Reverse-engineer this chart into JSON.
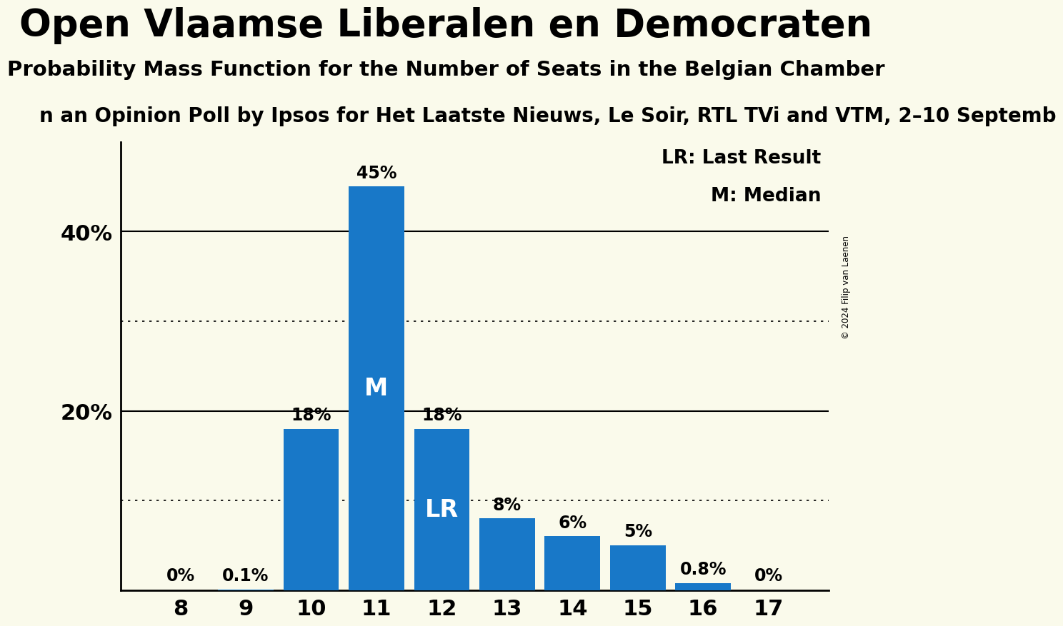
{
  "title": "Open Vlaamse Liberalen en Democraten",
  "subtitle": "Probability Mass Function for the Number of Seats in the Belgian Chamber",
  "subtitle2": "n an Opinion Poll by Ipsos for Het Laatste Nieuws, Le Soir, RTL TVi and VTM, 2–10 Septemb",
  "copyright": "© 2024 Filip van Laenen",
  "categories": [
    8,
    9,
    10,
    11,
    12,
    13,
    14,
    15,
    16,
    17
  ],
  "values": [
    0.0,
    0.1,
    18.0,
    45.0,
    18.0,
    8.0,
    6.0,
    5.0,
    0.8,
    0.0
  ],
  "bar_color": "#1878c8",
  "bar_labels": [
    "0%",
    "0.1%",
    "18%",
    "45%",
    "18%",
    "8%",
    "6%",
    "5%",
    "0.8%",
    "0%"
  ],
  "median_bar": 11,
  "lr_bar": 12,
  "background_color": "#fafaeb",
  "ylim": [
    0,
    50
  ],
  "yticks": [
    0,
    20,
    40
  ],
  "ytick_labels": [
    "",
    "20%",
    "40%"
  ],
  "solid_lines": [
    20,
    40
  ],
  "dotted_lines": [
    10,
    30
  ],
  "legend_lr": "LR: Last Result",
  "legend_m": "M: Median",
  "title_fontsize": 38,
  "subtitle_fontsize": 21,
  "subtitle2_fontsize": 20,
  "bar_label_fontsize": 17,
  "tick_fontsize": 22,
  "legend_fontsize": 19
}
